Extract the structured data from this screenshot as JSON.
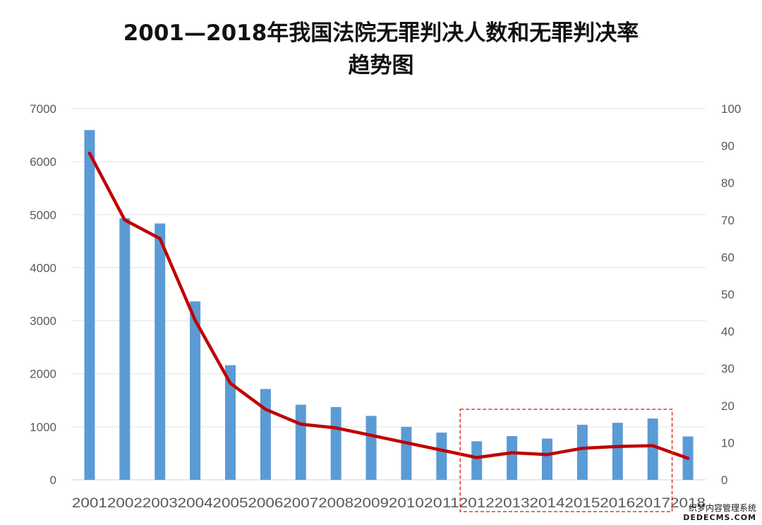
{
  "title_line1": "2001—2018年我国法院无罪判决人数和无罪判决率",
  "title_line2": "趋势图",
  "watermark_line1": "织梦内容管理系统",
  "watermark_line2": "DEDECMS.COM",
  "chart_data": {
    "type": "bar",
    "title": "2001—2018年我国法院无罪判决人数和无罪判决率趋势图",
    "categories": [
      "2001",
      "2002",
      "2003",
      "2004",
      "2005",
      "2006",
      "2007",
      "2008",
      "2009",
      "2010",
      "2011",
      "2012",
      "2013",
      "2014",
      "2015",
      "2016",
      "2017",
      "2018"
    ],
    "series": [
      {
        "type": "bar",
        "axis": "left",
        "color": "#5b9bd5",
        "values": [
          6597,
          4935,
          4835,
          3365,
          2162,
          1713,
          1417,
          1373,
          1206,
          999,
          891,
          727,
          825,
          778,
          1039,
          1076,
          1156,
          819
        ]
      },
      {
        "type": "line",
        "axis": "right",
        "color": "#c00000",
        "values": [
          88,
          70,
          65,
          43,
          26,
          19,
          15,
          14,
          12,
          10,
          8,
          6,
          7.3,
          6.8,
          8.5,
          9,
          9.2,
          5.8
        ]
      }
    ],
    "y_left": {
      "min": 0,
      "max": 7000,
      "ticks": [
        0,
        1000,
        2000,
        3000,
        4000,
        5000,
        6000,
        7000
      ]
    },
    "y_right": {
      "min": 0,
      "max": 100,
      "ticks": [
        0,
        10,
        20,
        30,
        40,
        50,
        60,
        70,
        80,
        90,
        100
      ]
    },
    "grid": true,
    "highlight_range": [
      "2012",
      "2017"
    ],
    "highlight_color": "#e03c31"
  }
}
